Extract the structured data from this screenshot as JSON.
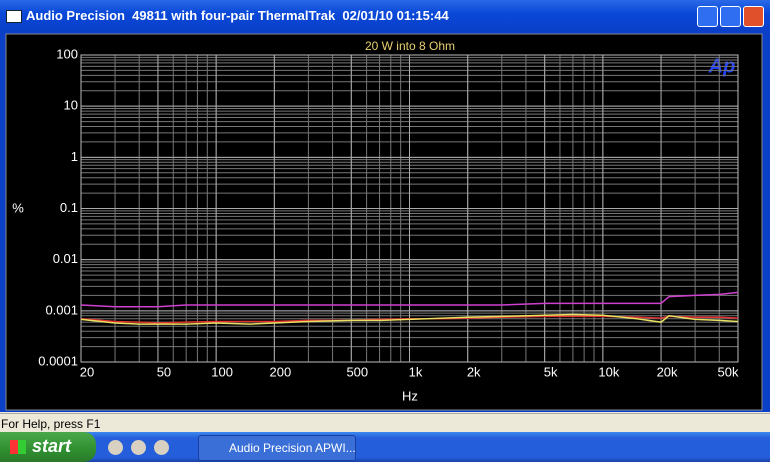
{
  "window": {
    "title": "Audio Precision  49811 with four-pair ThermalTrak  02/01/10 01:15:44"
  },
  "chart_data": {
    "type": "line",
    "title": "20 W into 8 Ohm",
    "xlabel": "Hz",
    "ylabel": "%",
    "xscale": "log",
    "yscale": "log",
    "grid": true,
    "xlim": [
      20,
      50000
    ],
    "ylim": [
      0.0001,
      100
    ],
    "xticks": [
      20,
      50,
      100,
      200,
      500,
      {
        "value": 1000,
        "label": "1k"
      },
      {
        "value": 2000,
        "label": "2k"
      },
      {
        "value": 5000,
        "label": "5k"
      },
      {
        "value": 10000,
        "label": "10k"
      },
      {
        "value": 20000,
        "label": "20k"
      },
      {
        "value": 50000,
        "label": "50k"
      }
    ],
    "yticks": [
      100,
      10,
      1,
      0.1,
      0.01,
      0.001,
      0.0001
    ],
    "x": [
      20,
      30,
      40,
      50,
      70,
      100,
      150,
      200,
      300,
      500,
      700,
      1000,
      1500,
      2000,
      3000,
      5000,
      7000,
      10000,
      15000,
      20000,
      22000,
      30000,
      40000,
      50000
    ],
    "series": [
      {
        "color": "#d040d0",
        "values": [
          0.0013,
          0.0012,
          0.0012,
          0.0012,
          0.0013,
          0.0013,
          0.0013,
          0.0013,
          0.0013,
          0.0013,
          0.0013,
          0.0013,
          0.0013,
          0.0013,
          0.0013,
          0.0014,
          0.0014,
          0.0014,
          0.0014,
          0.0014,
          0.0019,
          0.002,
          0.0021,
          0.0023
        ]
      },
      {
        "color": "#e03030",
        "values": [
          0.0007,
          0.00062,
          0.0006,
          0.00058,
          0.0006,
          0.00062,
          0.00062,
          0.00062,
          0.00065,
          0.00065,
          0.00068,
          0.0007,
          0.0007,
          0.00072,
          0.00075,
          0.00078,
          0.00078,
          0.00078,
          0.00075,
          0.00072,
          0.00078,
          0.00075,
          0.00075,
          0.00072
        ]
      },
      {
        "color": "#e8e060",
        "values": [
          0.00068,
          0.00058,
          0.00055,
          0.00055,
          0.00055,
          0.00058,
          0.00055,
          0.00058,
          0.00062,
          0.00065,
          0.00065,
          0.00068,
          0.00072,
          0.00075,
          0.00078,
          0.00082,
          0.00085,
          0.00082,
          0.0007,
          0.0006,
          0.0008,
          0.00068,
          0.00065,
          0.00062
        ]
      }
    ]
  },
  "status_bar": {
    "text": "For Help, press F1"
  },
  "taskbar": {
    "start": "start",
    "task": "Audio Precision APWI..."
  }
}
